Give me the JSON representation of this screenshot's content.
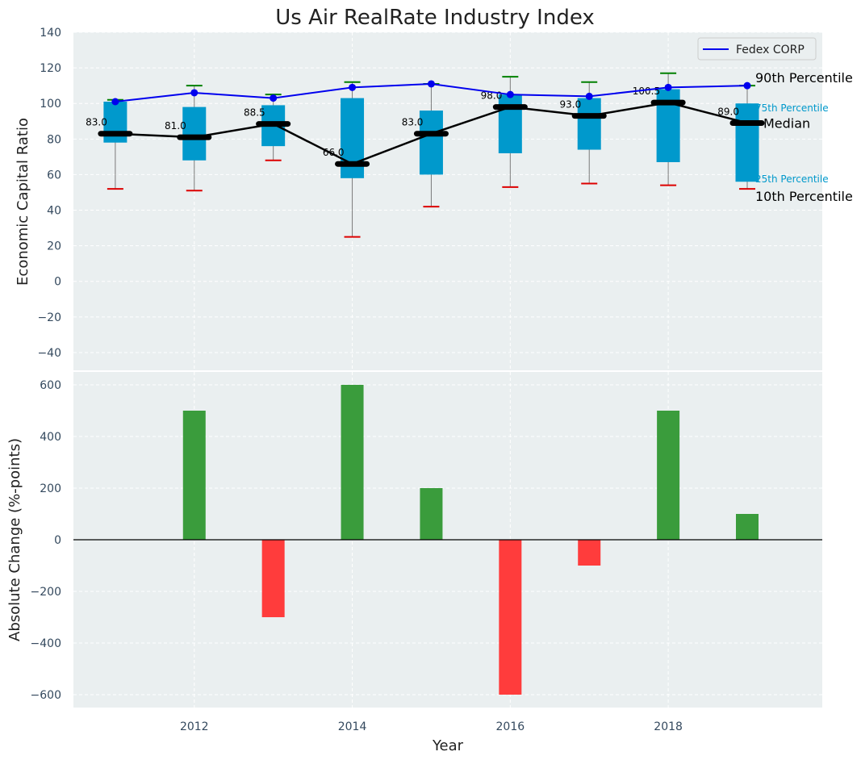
{
  "title": "Us Air RealRate Industry Index",
  "colors": {
    "panel_bg": "#eaeff0",
    "grid": "#ffffff",
    "box": "#0099cc",
    "median": "#000000",
    "fedex": "#0000ee",
    "whisker_top": "#008000",
    "whisker_bottom": "#dd0000",
    "bar_pos": "#3a9c3c",
    "bar_neg": "#ff3c3c",
    "pct_label": "#0099cc"
  },
  "chart_data": [
    {
      "type": "box",
      "ylabel": "Economic Capital Ratio",
      "xlabel": "",
      "ylim": [
        -50,
        140
      ],
      "yticks": [
        140,
        120,
        100,
        80,
        60,
        40,
        20,
        0,
        -20,
        -40
      ],
      "years": [
        2011,
        2012,
        2013,
        2014,
        2015,
        2016,
        2017,
        2018,
        2019
      ],
      "p10": [
        52,
        51,
        68,
        25,
        42,
        53,
        55,
        54,
        52
      ],
      "p25": [
        78,
        68,
        76,
        58,
        60,
        72,
        74,
        67,
        56
      ],
      "median": [
        83.0,
        81.0,
        88.5,
        66.0,
        83.0,
        98.0,
        93.0,
        100.5,
        89.0
      ],
      "p75": [
        101,
        98,
        99,
        103,
        96,
        105,
        103,
        108,
        100
      ],
      "p90": [
        102,
        110,
        105,
        112,
        111,
        115,
        112,
        117,
        110
      ],
      "median_labels": [
        "83.0",
        "81.0",
        "88.5",
        "66.0",
        "83.0",
        "98.0",
        "93.0",
        "100.5",
        "89.0"
      ],
      "series": [
        {
          "name": "Fedex CORP",
          "values": [
            101,
            106,
            103,
            109,
            111,
            105,
            104,
            109,
            110
          ]
        }
      ],
      "legend": {
        "label": "Fedex CORP",
        "position": "top-right"
      },
      "annotations": {
        "p90": "90th Percentile",
        "p75": "75th Percentile",
        "median": "Median",
        "p25": "25th Percentile",
        "p10": "10th Percentile"
      }
    },
    {
      "type": "bar",
      "ylabel": "Absolute Change (%-points)",
      "xlabel": "Year",
      "ylim": [
        -650,
        650
      ],
      "yticks": [
        600,
        400,
        200,
        0,
        -200,
        -400,
        -600
      ],
      "x": [
        2012,
        2013,
        2014,
        2015,
        2016,
        2017,
        2018,
        2019
      ],
      "values": [
        500,
        -300,
        600,
        200,
        -600,
        -100,
        500,
        100
      ],
      "xticks": [
        2012,
        2014,
        2016,
        2018
      ],
      "xtick_labels": [
        "2012",
        "2014",
        "2016",
        "2018"
      ]
    }
  ]
}
